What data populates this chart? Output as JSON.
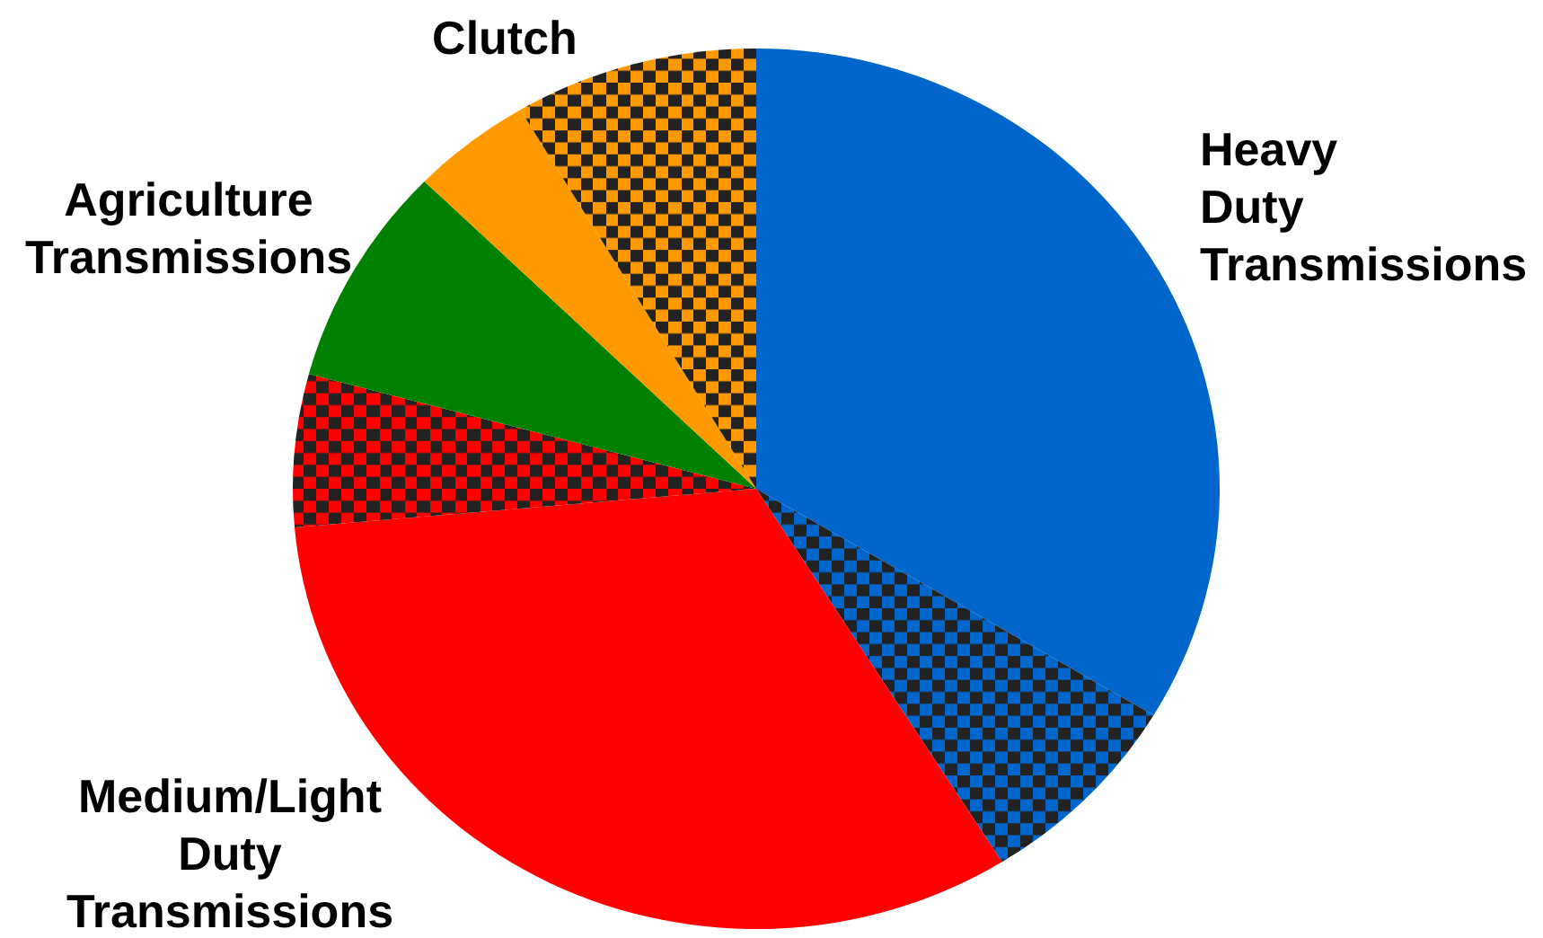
{
  "chart_data": {
    "type": "pie",
    "categories": [
      "Heavy Duty Transmissions",
      null,
      "Medium/Light Duty Transmissions",
      null,
      "Agriculture Transmissions",
      null,
      "Clutch"
    ],
    "values": [
      33.6,
      7.5,
      32.5,
      5.6,
      8.1,
      4.2,
      8.5
    ],
    "colors": [
      "#0066cc",
      "#0066cc",
      "#ff0000",
      "#ff0000",
      "#008000",
      "#ff9900",
      "#ff9900"
    ]
  }
}
